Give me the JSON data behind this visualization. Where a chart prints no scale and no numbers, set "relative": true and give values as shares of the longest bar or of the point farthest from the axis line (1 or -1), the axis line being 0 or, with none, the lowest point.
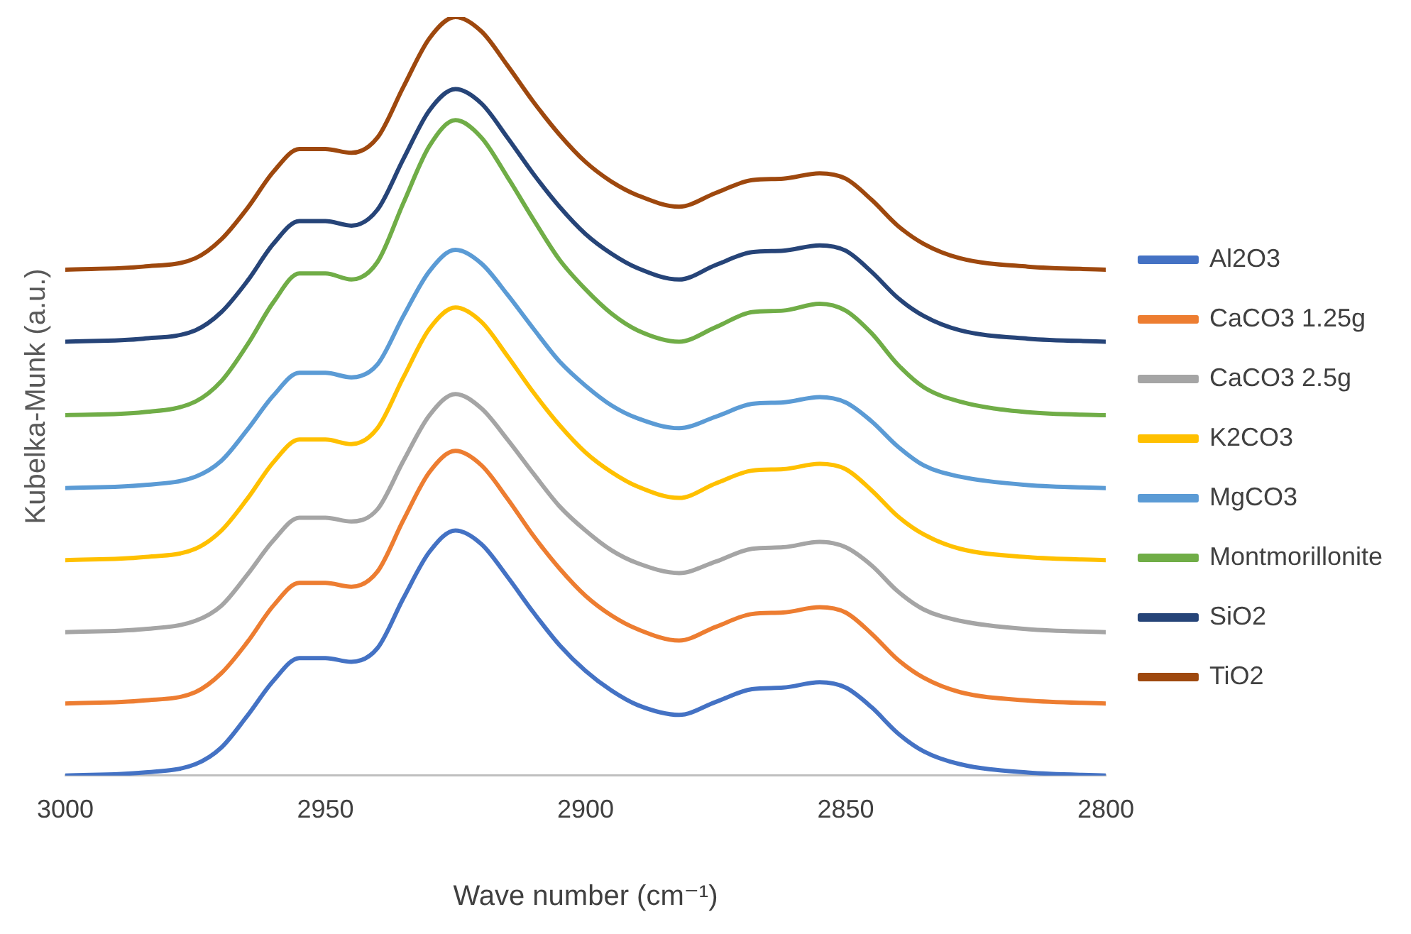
{
  "chart_data": {
    "type": "line",
    "xlabel": "Wave number (cm⁻¹)",
    "ylabel": "Kubelka-Munk (a.u.)",
    "relative": true,
    "xlim": [
      3000,
      2800
    ],
    "xticks": [
      3000,
      2950,
      2900,
      2850,
      2800
    ],
    "grid": false,
    "legend": "right",
    "marker": "none",
    "line_style": "solid",
    "x": [
      3000,
      2985,
      2975,
      2970,
      2965,
      2960,
      2955,
      2950,
      2945,
      2940,
      2935,
      2930,
      2925,
      2920,
      2915,
      2910,
      2905,
      2900,
      2895,
      2890,
      2882,
      2875,
      2868,
      2862,
      2855,
      2850,
      2845,
      2840,
      2835,
      2828,
      2815,
      2800
    ],
    "series": [
      {
        "name": "Al2O3",
        "color": "#4472c4",
        "values": [
          0,
          0.004,
          0.015,
          0.037,
          0.079,
          0.125,
          0.155,
          0.155,
          0.15,
          0.168,
          0.234,
          0.295,
          0.323,
          0.305,
          0.262,
          0.215,
          0.172,
          0.138,
          0.112,
          0.093,
          0.08,
          0.097,
          0.114,
          0.116,
          0.123,
          0.116,
          0.09,
          0.056,
          0.032,
          0.015,
          0.004,
          0
        ]
      },
      {
        "name": "CaCO3 1.25g",
        "color": "#ed7d31",
        "values": [
          0.095,
          0.099,
          0.11,
          0.135,
          0.176,
          0.224,
          0.254,
          0.254,
          0.249,
          0.269,
          0.337,
          0.4,
          0.428,
          0.409,
          0.365,
          0.316,
          0.273,
          0.237,
          0.211,
          0.193,
          0.178,
          0.196,
          0.213,
          0.215,
          0.222,
          0.215,
          0.187,
          0.153,
          0.129,
          0.11,
          0.099,
          0.095
        ]
      },
      {
        "name": "CaCO3 2.5g",
        "color": "#a5a5a5",
        "values": [
          0.189,
          0.193,
          0.204,
          0.224,
          0.265,
          0.31,
          0.34,
          0.34,
          0.335,
          0.351,
          0.415,
          0.475,
          0.503,
          0.484,
          0.443,
          0.398,
          0.355,
          0.323,
          0.297,
          0.28,
          0.267,
          0.282,
          0.299,
          0.301,
          0.308,
          0.301,
          0.277,
          0.243,
          0.219,
          0.204,
          0.193,
          0.189
        ]
      },
      {
        "name": "K2CO3",
        "color": "#ffc000",
        "values": [
          0.284,
          0.288,
          0.299,
          0.323,
          0.365,
          0.413,
          0.443,
          0.443,
          0.437,
          0.458,
          0.525,
          0.589,
          0.617,
          0.598,
          0.553,
          0.505,
          0.462,
          0.426,
          0.4,
          0.381,
          0.366,
          0.385,
          0.402,
          0.404,
          0.411,
          0.404,
          0.376,
          0.342,
          0.318,
          0.299,
          0.288,
          0.284
        ]
      },
      {
        "name": "MgCO3",
        "color": "#5b9bd5",
        "values": [
          0.379,
          0.383,
          0.394,
          0.415,
          0.456,
          0.501,
          0.531,
          0.531,
          0.525,
          0.542,
          0.606,
          0.665,
          0.693,
          0.675,
          0.634,
          0.589,
          0.546,
          0.514,
          0.488,
          0.471,
          0.458,
          0.473,
          0.49,
          0.492,
          0.499,
          0.492,
          0.467,
          0.434,
          0.409,
          0.394,
          0.383,
          0.379
        ]
      },
      {
        "name": "Montmorillonite",
        "color": "#70ad47",
        "values": [
          0.475,
          0.479,
          0.493,
          0.52,
          0.568,
          0.624,
          0.662,
          0.662,
          0.654,
          0.677,
          0.755,
          0.83,
          0.864,
          0.841,
          0.789,
          0.733,
          0.68,
          0.641,
          0.609,
          0.587,
          0.572,
          0.591,
          0.611,
          0.613,
          0.622,
          0.613,
          0.583,
          0.542,
          0.512,
          0.493,
          0.479,
          0.475
        ]
      },
      {
        "name": "SiO2",
        "color": "#264478",
        "values": [
          0.572,
          0.576,
          0.587,
          0.611,
          0.652,
          0.701,
          0.731,
          0.731,
          0.725,
          0.746,
          0.813,
          0.877,
          0.905,
          0.886,
          0.841,
          0.793,
          0.75,
          0.714,
          0.688,
          0.669,
          0.654,
          0.673,
          0.69,
          0.692,
          0.699,
          0.692,
          0.664,
          0.63,
          0.606,
          0.587,
          0.576,
          0.572
        ]
      },
      {
        "name": "TiO2",
        "color": "#9e480e",
        "values": [
          0.667,
          0.671,
          0.682,
          0.707,
          0.748,
          0.796,
          0.826,
          0.826,
          0.821,
          0.841,
          0.908,
          0.972,
          1,
          0.981,
          0.936,
          0.888,
          0.845,
          0.809,
          0.783,
          0.765,
          0.75,
          0.768,
          0.785,
          0.787,
          0.794,
          0.787,
          0.759,
          0.725,
          0.701,
          0.682,
          0.671,
          0.667
        ]
      }
    ]
  }
}
